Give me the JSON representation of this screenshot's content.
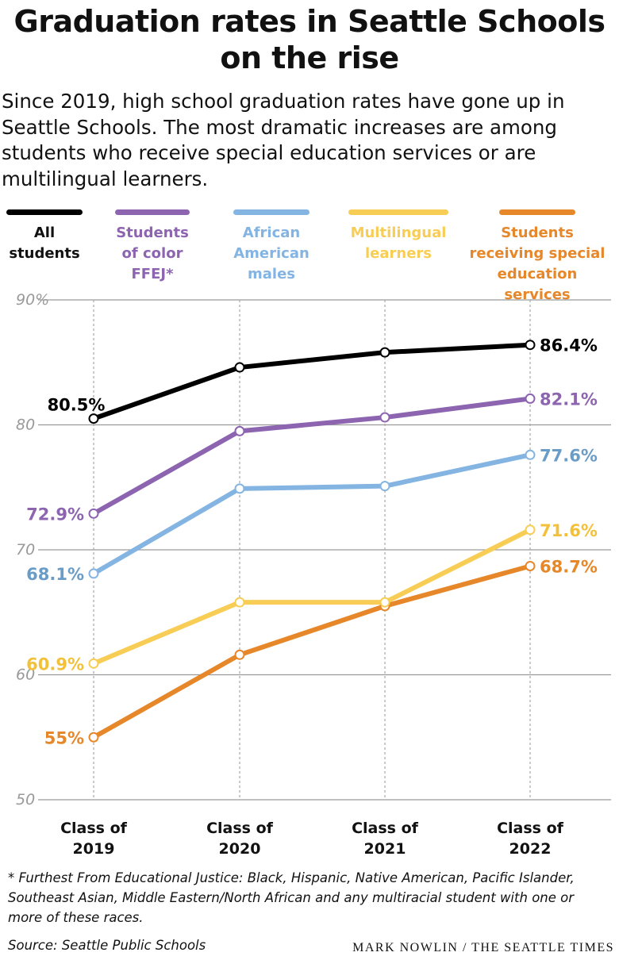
{
  "header": {
    "title_line1": "Graduation rates in Seattle Schools",
    "title_line2": "on the rise",
    "subtitle": "Since 2019, high school graduation rates have gone up in Seattle Schools. The most dramatic increases are among students who receive special education services or are multilingual learners."
  },
  "legend": [
    {
      "lines": [
        "All",
        "students"
      ],
      "color": "#000000"
    },
    {
      "lines": [
        "Students",
        "of color",
        "FFEJ*"
      ],
      "color": "#8c64b0"
    },
    {
      "lines": [
        "African",
        "American",
        "males"
      ],
      "color": "#84b4e2"
    },
    {
      "lines": [
        "Multilingual",
        "learners"
      ],
      "color": "#f8cd55"
    },
    {
      "lines": [
        "Students",
        "receiving special",
        "education services"
      ],
      "color": "#e6872a"
    }
  ],
  "chart_data": {
    "type": "line",
    "categories": [
      [
        "Class of",
        "2019"
      ],
      [
        "Class of",
        "2020"
      ],
      [
        "Class of",
        "2021"
      ],
      [
        "Class of",
        "2022"
      ]
    ],
    "y_ticks": [
      {
        "value": 90,
        "label": "90%"
      },
      {
        "value": 80,
        "label": "80"
      },
      {
        "value": 70,
        "label": "70"
      },
      {
        "value": 60,
        "label": "60"
      },
      {
        "value": 50,
        "label": "50"
      }
    ],
    "ylim": [
      50,
      90
    ],
    "series": [
      {
        "values": [
          80.5,
          84.6,
          85.8,
          86.4
        ],
        "color": "#000000",
        "label_color": "#000000",
        "first_label": "80.5%",
        "last_label": "86.4%",
        "first_pos": "above"
      },
      {
        "values": [
          72.9,
          79.5,
          80.6,
          82.1
        ],
        "color": "#8c64b0",
        "label_color": "#8c64b0",
        "first_label": "72.9%",
        "last_label": "82.1%",
        "first_pos": "left"
      },
      {
        "values": [
          68.1,
          74.9,
          75.1,
          77.6
        ],
        "color": "#84b4e2",
        "label_color": "#6a9cc8",
        "first_label": "68.1%",
        "last_label": "77.6%",
        "first_pos": "left"
      },
      {
        "values": [
          60.9,
          65.8,
          65.8,
          71.6
        ],
        "color": "#f8cd55",
        "label_color": "#f3c03a",
        "first_label": "60.9%",
        "last_label": "71.6%",
        "first_pos": "left"
      },
      {
        "values": [
          55.0,
          61.6,
          65.5,
          68.7
        ],
        "color": "#e6872a",
        "label_color": "#e6872a",
        "first_label": "55%",
        "last_label": "68.7%",
        "first_pos": "left"
      }
    ]
  },
  "footer": {
    "footnote": "* Furthest From Educational Justice: Black, Hispanic, Native American, Pacific Islander, Southeast Asian, Middle Eastern/North African and any multiracial student with one or more of these races.",
    "source": "Source: Seattle Public Schools",
    "credit": "MARK NOWLIN / THE SEATTLE TIMES"
  }
}
